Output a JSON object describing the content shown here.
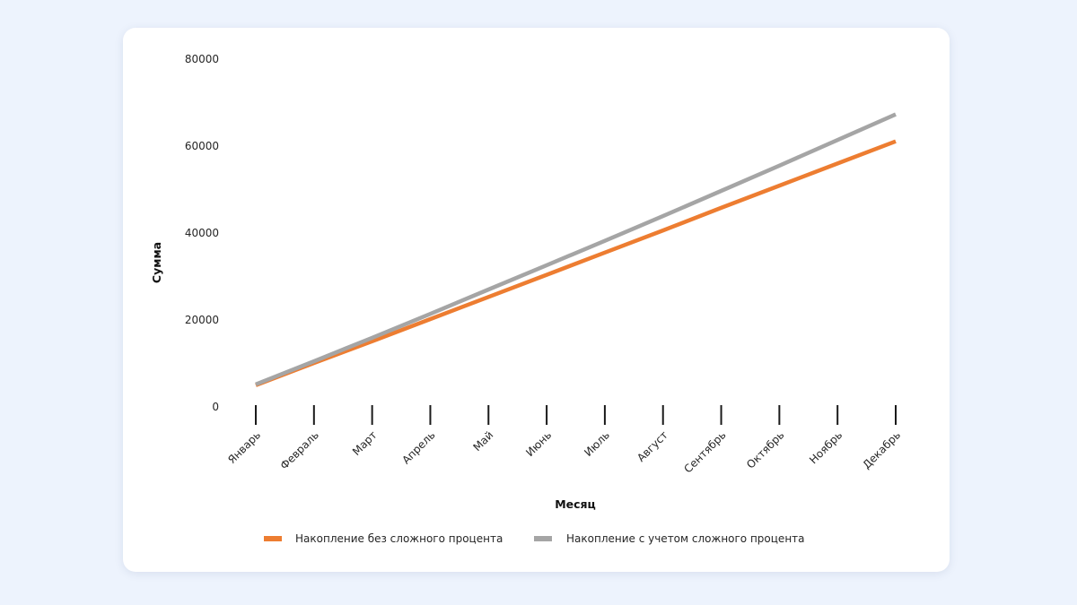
{
  "colors": {
    "background": "#edf3fd",
    "card": "#ffffff",
    "series_simple": "#ed7d31",
    "series_compound": "#a5a5a5"
  },
  "chart_data": {
    "type": "line",
    "title": "",
    "xlabel": "Месяц",
    "ylabel": "Сумма",
    "categories": [
      "Январь",
      "Февраль",
      "Март",
      "Апрель",
      "Май",
      "Июнь",
      "Июль",
      "Август",
      "Сентябрь",
      "Октябрь",
      "Ноябрь",
      "Декабрь"
    ],
    "ylim": [
      0,
      80000
    ],
    "yticks": [
      "0",
      "20000",
      "40000",
      "60000",
      "80000"
    ],
    "grid": false,
    "legend_position": "bottom",
    "series": [
      {
        "name": "Накопление без сложного процента",
        "color": "#ed7d31",
        "values": [
          5000,
          10100,
          15100,
          20200,
          25300,
          30400,
          35500,
          40600,
          45800,
          50900,
          56000,
          61100
        ]
      },
      {
        "name": "Накопление с учетом сложного процента",
        "color": "#a5a5a5",
        "values": [
          5200,
          10500,
          15900,
          21400,
          27000,
          32600,
          38200,
          43900,
          49700,
          55500,
          61400,
          67300
        ]
      }
    ]
  }
}
